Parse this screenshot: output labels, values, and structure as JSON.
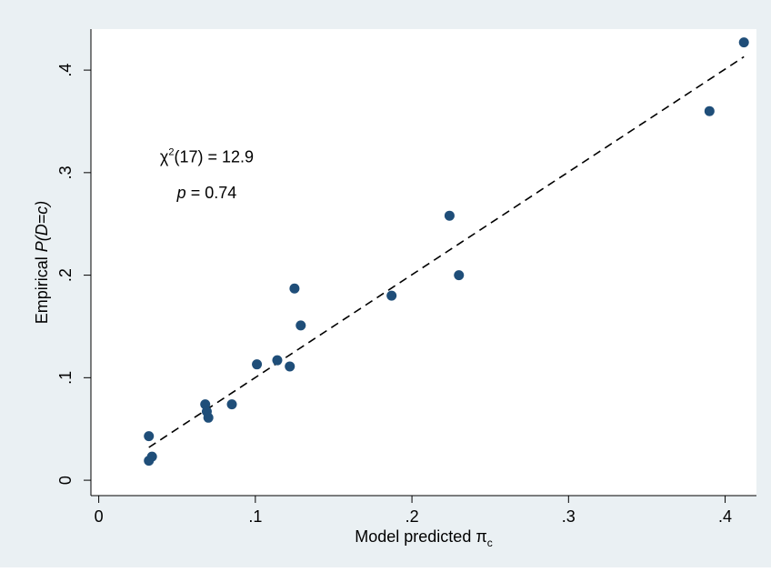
{
  "chart_data": {
    "type": "scatter",
    "title": "",
    "xlabel": "Model predicted π",
    "xlabel_subscript": "c",
    "ylabel_prefix": "Empirical ",
    "ylabel_italic": "P(D=c)",
    "xlim": [
      -0.005,
      0.42
    ],
    "ylim": [
      -0.015,
      0.44
    ],
    "x_ticks": [
      0,
      0.1,
      0.2,
      0.3,
      0.4
    ],
    "x_tick_labels": [
      "0",
      ".1",
      ".2",
      ".3",
      ".4"
    ],
    "y_ticks": [
      0,
      0.1,
      0.2,
      0.3,
      0.4
    ],
    "y_tick_labels": [
      "0",
      ".1",
      ".2",
      ".3",
      ".4"
    ],
    "grid": false,
    "series": [
      {
        "marker_color": "#1f4e79",
        "x": [
          0.032,
          0.032,
          0.034,
          0.068,
          0.069,
          0.07,
          0.085,
          0.101,
          0.114,
          0.122,
          0.125,
          0.129,
          0.187,
          0.224,
          0.23,
          0.39,
          0.412
        ],
        "y": [
          0.043,
          0.019,
          0.023,
          0.074,
          0.067,
          0.061,
          0.074,
          0.113,
          0.117,
          0.111,
          0.187,
          0.151,
          0.18,
          0.258,
          0.2,
          0.36,
          0.427
        ]
      }
    ],
    "fit_line": {
      "style": "dashed",
      "color": "#000000",
      "x": [
        0.032,
        0.412
      ],
      "y": [
        0.032,
        0.413
      ]
    },
    "annotation": {
      "chi_symbol": "χ",
      "chi_superscript": "2",
      "chi_rest": "(17) = 12.9",
      "p_italic": "p",
      "p_rest": " = 0.74"
    },
    "background_color": "#eaf0f3",
    "plot_background": "#ffffff"
  }
}
